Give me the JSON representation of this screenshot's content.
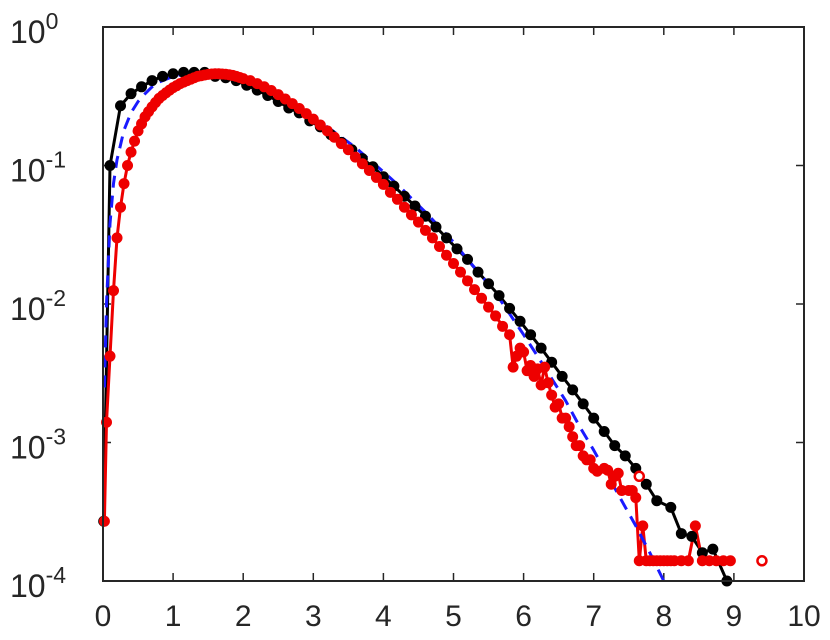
{
  "chart_data": {
    "type": "line",
    "title": "",
    "xlabel": "",
    "ylabel": "",
    "xlim": [
      0,
      10
    ],
    "ylim": [
      0.0001,
      1
    ],
    "yscale": "log",
    "grid": false,
    "legend": "none",
    "x_ticks": [
      {
        "value": 0,
        "label": "0"
      },
      {
        "value": 1,
        "label": "1"
      },
      {
        "value": 2,
        "label": "2"
      },
      {
        "value": 3,
        "label": "3"
      },
      {
        "value": 4,
        "label": "4"
      },
      {
        "value": 5,
        "label": "5"
      },
      {
        "value": 6,
        "label": "6"
      },
      {
        "value": 7,
        "label": "7"
      },
      {
        "value": 8,
        "label": "8"
      },
      {
        "value": 9,
        "label": "9"
      },
      {
        "value": 10,
        "label": "10"
      }
    ],
    "y_ticks": [
      {
        "value": 0.0001,
        "base": "10",
        "exp": "-4"
      },
      {
        "value": 0.001,
        "base": "10",
        "exp": "-3"
      },
      {
        "value": 0.01,
        "base": "10",
        "exp": "-2"
      },
      {
        "value": 0.1,
        "base": "10",
        "exp": "-1"
      },
      {
        "value": 1,
        "base": "10",
        "exp": "0"
      }
    ],
    "series": [
      {
        "color": "#000000",
        "style": "solid-markers",
        "points": [
          [
            0.01,
            0.00027
          ],
          [
            0.1,
            0.1
          ],
          [
            0.25,
            0.27
          ],
          [
            0.4,
            0.33
          ],
          [
            0.55,
            0.37
          ],
          [
            0.7,
            0.41
          ],
          [
            0.85,
            0.44
          ],
          [
            1.0,
            0.46
          ],
          [
            1.15,
            0.47
          ],
          [
            1.3,
            0.47
          ],
          [
            1.45,
            0.47
          ],
          [
            1.6,
            0.44
          ],
          [
            1.75,
            0.43
          ],
          [
            1.9,
            0.41
          ],
          [
            2.05,
            0.38
          ],
          [
            2.2,
            0.35
          ],
          [
            2.35,
            0.32
          ],
          [
            2.5,
            0.29
          ],
          [
            2.65,
            0.26
          ],
          [
            2.8,
            0.24
          ],
          [
            2.95,
            0.21
          ],
          [
            3.1,
            0.19
          ],
          [
            3.25,
            0.167
          ],
          [
            3.4,
            0.147
          ],
          [
            3.55,
            0.13
          ],
          [
            3.7,
            0.112
          ],
          [
            3.85,
            0.098
          ],
          [
            4.0,
            0.083
          ],
          [
            4.15,
            0.071
          ],
          [
            4.3,
            0.06
          ],
          [
            4.45,
            0.051
          ],
          [
            4.6,
            0.043
          ],
          [
            4.75,
            0.036
          ],
          [
            4.9,
            0.03
          ],
          [
            5.05,
            0.025
          ],
          [
            5.2,
            0.021
          ],
          [
            5.35,
            0.017
          ],
          [
            5.5,
            0.014
          ],
          [
            5.65,
            0.0115
          ],
          [
            5.8,
            0.0093
          ],
          [
            5.95,
            0.0075
          ],
          [
            6.1,
            0.006
          ],
          [
            6.25,
            0.0048
          ],
          [
            6.4,
            0.0038
          ],
          [
            6.55,
            0.003
          ],
          [
            6.7,
            0.0024
          ],
          [
            6.85,
            0.0019
          ],
          [
            7.0,
            0.0015
          ],
          [
            7.15,
            0.0012
          ],
          [
            7.3,
            0.00095
          ],
          [
            7.45,
            0.0008
          ],
          [
            7.6,
            0.00065
          ],
          [
            7.75,
            0.0005
          ],
          [
            7.9,
            0.00038
          ],
          [
            8.1,
            0.00034
          ],
          [
            8.25,
            0.00022
          ],
          [
            8.4,
            0.00021
          ],
          [
            8.55,
            0.00016
          ],
          [
            8.7,
            0.00017
          ],
          [
            8.9,
            0.0001
          ]
        ]
      },
      {
        "color": "#ee0000",
        "style": "solid-markers",
        "points": [
          [
            0.02,
            0.00027
          ],
          [
            0.05,
            0.0014
          ],
          [
            0.1,
            0.0042
          ],
          [
            0.15,
            0.0125
          ],
          [
            0.2,
            0.03
          ],
          [
            0.25,
            0.05
          ],
          [
            0.3,
            0.074
          ],
          [
            0.35,
            0.1
          ],
          [
            0.4,
            0.125
          ],
          [
            0.45,
            0.15
          ],
          [
            0.5,
            0.178
          ],
          [
            0.55,
            0.2
          ],
          [
            0.6,
            0.225
          ],
          [
            0.65,
            0.245
          ],
          [
            0.7,
            0.265
          ],
          [
            0.75,
            0.285
          ],
          [
            0.8,
            0.305
          ],
          [
            0.85,
            0.32
          ],
          [
            0.9,
            0.335
          ],
          [
            0.95,
            0.35
          ],
          [
            1.0,
            0.365
          ],
          [
            1.05,
            0.377
          ],
          [
            1.1,
            0.39
          ],
          [
            1.15,
            0.4
          ],
          [
            1.2,
            0.41
          ],
          [
            1.25,
            0.42
          ],
          [
            1.3,
            0.43
          ],
          [
            1.35,
            0.44
          ],
          [
            1.4,
            0.445
          ],
          [
            1.45,
            0.45
          ],
          [
            1.5,
            0.455
          ],
          [
            1.55,
            0.458
          ],
          [
            1.6,
            0.46
          ],
          [
            1.65,
            0.46
          ],
          [
            1.7,
            0.458
          ],
          [
            1.75,
            0.456
          ],
          [
            1.8,
            0.452
          ],
          [
            1.85,
            0.447
          ],
          [
            1.9,
            0.44
          ],
          [
            1.95,
            0.432
          ],
          [
            2.0,
            0.424
          ],
          [
            2.1,
            0.41
          ],
          [
            2.2,
            0.39
          ],
          [
            2.3,
            0.37
          ],
          [
            2.4,
            0.348
          ],
          [
            2.5,
            0.325
          ],
          [
            2.6,
            0.302
          ],
          [
            2.7,
            0.28
          ],
          [
            2.8,
            0.258
          ],
          [
            2.9,
            0.237
          ],
          [
            3.0,
            0.216
          ],
          [
            3.1,
            0.196
          ],
          [
            3.2,
            0.178
          ],
          [
            3.3,
            0.16
          ],
          [
            3.4,
            0.144
          ],
          [
            3.5,
            0.13
          ],
          [
            3.6,
            0.115
          ],
          [
            3.7,
            0.103
          ],
          [
            3.8,
            0.092
          ],
          [
            3.9,
            0.082
          ],
          [
            4.0,
            0.073
          ],
          [
            4.1,
            0.064
          ],
          [
            4.2,
            0.057
          ],
          [
            4.3,
            0.05
          ],
          [
            4.4,
            0.044
          ],
          [
            4.5,
            0.039
          ],
          [
            4.6,
            0.034
          ],
          [
            4.7,
            0.03
          ],
          [
            4.8,
            0.026
          ],
          [
            4.9,
            0.0225
          ],
          [
            5.0,
            0.0196
          ],
          [
            5.1,
            0.017
          ],
          [
            5.2,
            0.0147
          ],
          [
            5.3,
            0.0127
          ],
          [
            5.4,
            0.011
          ],
          [
            5.5,
            0.0095
          ],
          [
            5.6,
            0.0082
          ],
          [
            5.7,
            0.0069
          ],
          [
            5.8,
            0.006
          ],
          [
            5.85,
            0.0035
          ],
          [
            5.9,
            0.0042
          ],
          [
            5.95,
            0.0048
          ],
          [
            6.0,
            0.0045
          ],
          [
            6.05,
            0.0033
          ],
          [
            6.1,
            0.0036
          ],
          [
            6.15,
            0.003
          ],
          [
            6.2,
            0.0034
          ],
          [
            6.25,
            0.0026
          ],
          [
            6.3,
            0.0035
          ],
          [
            6.35,
            0.0027
          ],
          [
            6.4,
            0.0022
          ],
          [
            6.45,
            0.0018
          ],
          [
            6.5,
            0.0019
          ],
          [
            6.55,
            0.0015
          ],
          [
            6.6,
            0.0015
          ],
          [
            6.65,
            0.0013
          ],
          [
            6.7,
            0.0011
          ],
          [
            6.75,
            0.00095
          ],
          [
            6.8,
            0.00095
          ],
          [
            6.85,
            0.0008
          ],
          [
            6.9,
            0.00075
          ],
          [
            6.95,
            0.00075
          ],
          [
            7.0,
            0.00065
          ],
          [
            7.05,
            0.00062
          ],
          [
            7.15,
            0.00065
          ],
          [
            7.2,
            0.00063
          ],
          [
            7.25,
            0.0005
          ],
          [
            7.3,
            0.00057
          ],
          [
            7.35,
            0.0006
          ],
          [
            7.4,
            0.00045
          ],
          [
            7.5,
            0.00045
          ],
          [
            7.55,
            0.00045
          ],
          [
            7.6,
            0.0004
          ],
          [
            7.65,
            0.00014
          ],
          [
            7.7,
            0.00025
          ],
          [
            7.75,
            0.00014
          ],
          [
            7.8,
            0.00014
          ],
          [
            7.85,
            0.00014
          ],
          [
            7.9,
            0.00014
          ],
          [
            7.95,
            0.00014
          ],
          [
            8.0,
            0.00014
          ],
          [
            8.05,
            0.00014
          ],
          [
            8.1,
            0.00014
          ],
          [
            8.15,
            0.00014
          ],
          [
            8.25,
            0.00014
          ],
          [
            8.35,
            0.00014
          ],
          [
            8.45,
            0.00025
          ],
          [
            8.55,
            0.00014
          ],
          [
            8.65,
            0.00014
          ],
          [
            8.75,
            0.00014
          ],
          [
            8.85,
            0.00014
          ],
          [
            8.95,
            0.00014
          ]
        ],
        "open_markers": [
          [
            7.65,
            0.00057
          ],
          [
            9.4,
            0.00014
          ]
        ]
      },
      {
        "color": "#1a1aff",
        "style": "dashed",
        "points": [
          [
            0.02,
            0.0025
          ],
          [
            0.05,
            0.01
          ],
          [
            0.1,
            0.038
          ],
          [
            0.15,
            0.074
          ],
          [
            0.2,
            0.11
          ],
          [
            0.3,
            0.18
          ],
          [
            0.4,
            0.24
          ],
          [
            0.5,
            0.29
          ],
          [
            0.6,
            0.33
          ],
          [
            0.7,
            0.37
          ],
          [
            0.8,
            0.4
          ],
          [
            0.9,
            0.42
          ],
          [
            1.0,
            0.44
          ],
          [
            1.2,
            0.46
          ],
          [
            1.4,
            0.46
          ],
          [
            1.6,
            0.45
          ],
          [
            1.8,
            0.43
          ],
          [
            2.0,
            0.4
          ],
          [
            2.2,
            0.37
          ],
          [
            2.4,
            0.33
          ],
          [
            2.6,
            0.29
          ],
          [
            2.8,
            0.26
          ],
          [
            3.0,
            0.22
          ],
          [
            3.2,
            0.19
          ],
          [
            3.4,
            0.16
          ],
          [
            3.6,
            0.135
          ],
          [
            3.8,
            0.11
          ],
          [
            4.0,
            0.09
          ],
          [
            4.2,
            0.073
          ],
          [
            4.4,
            0.058
          ],
          [
            4.6,
            0.046
          ],
          [
            4.8,
            0.036
          ],
          [
            5.0,
            0.028
          ],
          [
            5.2,
            0.021
          ],
          [
            5.4,
            0.016
          ],
          [
            5.6,
            0.012
          ],
          [
            5.8,
            0.0085
          ],
          [
            6.0,
            0.006
          ],
          [
            6.2,
            0.0042
          ],
          [
            6.4,
            0.0029
          ],
          [
            6.6,
            0.002
          ],
          [
            6.8,
            0.0013
          ],
          [
            7.0,
            0.00088
          ],
          [
            7.2,
            0.00058
          ],
          [
            7.4,
            0.00038
          ],
          [
            7.6,
            0.00025
          ],
          [
            7.8,
            0.00016
          ],
          [
            8.0,
            0.0001
          ]
        ]
      }
    ]
  }
}
